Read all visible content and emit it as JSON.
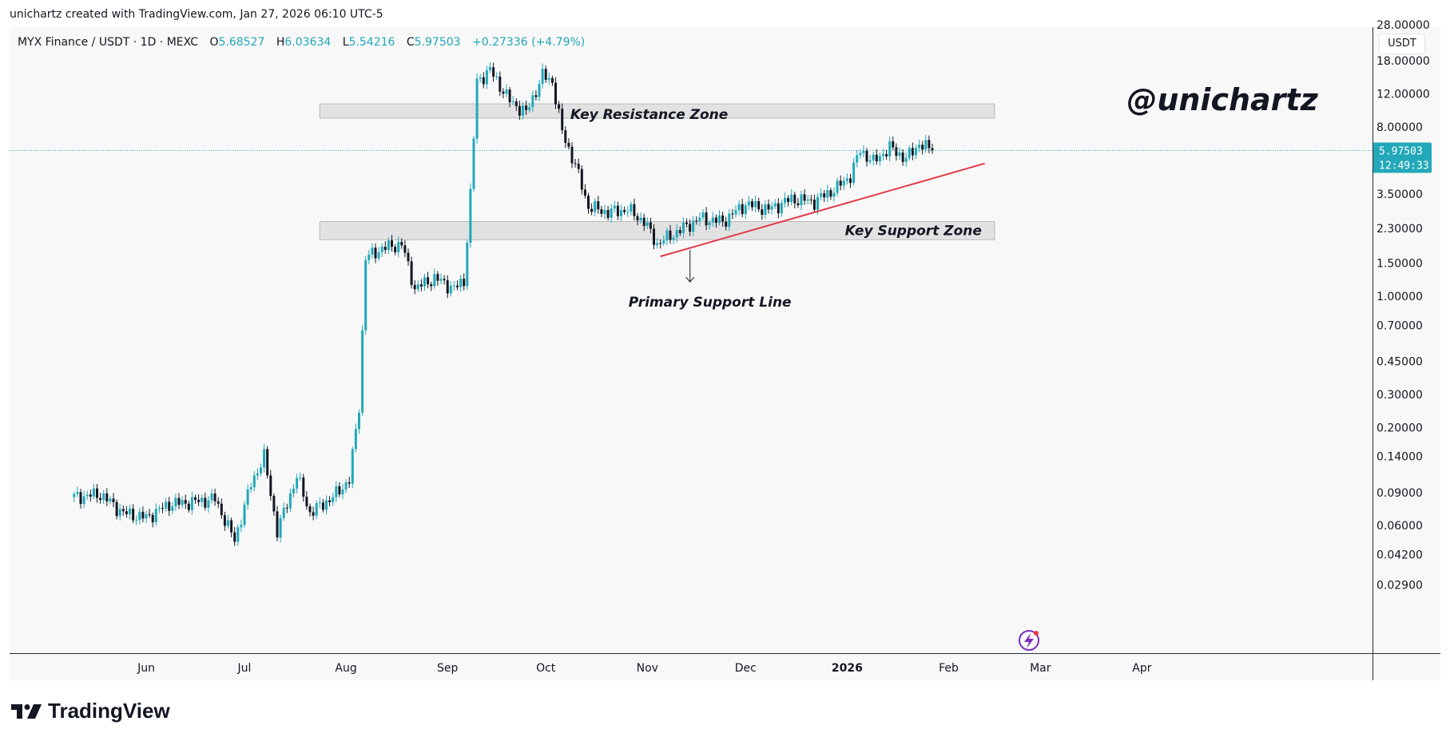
{
  "credit": "unichartz created with TradingView.com, Jan 27, 2026 06:10 UTC-5",
  "header": {
    "symbol": "MYX Finance / USDT · 1D · MEXC",
    "open_label": "O",
    "open": "5.68527",
    "high_label": "H",
    "high": "6.03634",
    "low_label": "L",
    "low": "5.54216",
    "close_label": "C",
    "close": "5.97503",
    "change": "+0.27336 (+4.79%)"
  },
  "currency": "USDT",
  "brand": "TradingView",
  "colors": {
    "up": "#22a8b9",
    "down": "#131722",
    "trendline": "#e23b4a",
    "zone": "#dcdcdc",
    "price_line": "#22a8b9"
  },
  "chart_data": {
    "type": "candlestick",
    "scale": "log",
    "title": "MYX Finance / USDT · 1D · MEXC",
    "watermark": "@unichartz",
    "y_ticks": [
      "28.00000",
      "18.00000",
      "12.00000",
      "8.00000",
      "3.50000",
      "2.30000",
      "1.50000",
      "1.00000",
      "0.70000",
      "0.45000",
      "0.30000",
      "0.20000",
      "0.14000",
      "0.09000",
      "0.06000",
      "0.04200",
      "0.02900"
    ],
    "x_labels": [
      "Jun",
      "Jul",
      "Aug",
      "Sep",
      "Oct",
      "Nov",
      "Dec",
      "2026",
      "Feb",
      "Mar",
      "Apr"
    ],
    "last_price": "5.97503",
    "countdown": "12:49:33",
    "zones": [
      {
        "label": "Key Resistance Zone",
        "low": 8.9,
        "high": 10.6,
        "start": "2025-07-24",
        "end": "2026-02-15"
      },
      {
        "label": "Key Support Zone",
        "low": 2.0,
        "high": 2.5,
        "start": "2025-07-24",
        "end": "2026-02-15"
      }
    ],
    "trendline": {
      "label": "Primary Support Line",
      "from": {
        "date": "2025-11-05",
        "price": 1.63
      },
      "to": {
        "date": "2026-02-12",
        "price": 5.1
      }
    },
    "close_series": [
      {
        "date": "2025-05-10",
        "price": 0.085
      },
      {
        "date": "2025-05-18",
        "price": 0.088
      },
      {
        "date": "2025-05-25",
        "price": 0.07
      },
      {
        "date": "2025-06-01",
        "price": 0.066
      },
      {
        "date": "2025-06-08",
        "price": 0.078
      },
      {
        "date": "2025-06-15",
        "price": 0.08
      },
      {
        "date": "2025-06-22",
        "price": 0.083
      },
      {
        "date": "2025-06-28",
        "price": 0.05
      },
      {
        "date": "2025-07-03",
        "price": 0.1
      },
      {
        "date": "2025-07-07",
        "price": 0.14
      },
      {
        "date": "2025-07-11",
        "price": 0.056
      },
      {
        "date": "2025-07-17",
        "price": 0.11
      },
      {
        "date": "2025-07-21",
        "price": 0.07
      },
      {
        "date": "2025-07-28",
        "price": 0.085
      },
      {
        "date": "2025-08-02",
        "price": 0.105
      },
      {
        "date": "2025-08-05",
        "price": 0.26
      },
      {
        "date": "2025-08-07",
        "price": 1.6
      },
      {
        "date": "2025-08-12",
        "price": 1.8
      },
      {
        "date": "2025-08-18",
        "price": 1.9
      },
      {
        "date": "2025-08-22",
        "price": 1.1
      },
      {
        "date": "2025-08-28",
        "price": 1.25
      },
      {
        "date": "2025-09-03",
        "price": 1.1
      },
      {
        "date": "2025-09-06",
        "price": 1.2
      },
      {
        "date": "2025-09-08",
        "price": 3.5
      },
      {
        "date": "2025-09-10",
        "price": 14
      },
      {
        "date": "2025-09-14",
        "price": 16
      },
      {
        "date": "2025-09-20",
        "price": 11
      },
      {
        "date": "2025-09-25",
        "price": 9.5
      },
      {
        "date": "2025-09-30",
        "price": 15
      },
      {
        "date": "2025-10-03",
        "price": 14
      },
      {
        "date": "2025-10-06",
        "price": 7.5
      },
      {
        "date": "2025-10-10",
        "price": 5
      },
      {
        "date": "2025-10-14",
        "price": 3
      },
      {
        "date": "2025-10-20",
        "price": 2.8
      },
      {
        "date": "2025-10-26",
        "price": 2.9
      },
      {
        "date": "2025-10-31",
        "price": 2.5
      },
      {
        "date": "2025-11-04",
        "price": 1.9
      },
      {
        "date": "2025-11-10",
        "price": 2.2
      },
      {
        "date": "2025-11-17",
        "price": 2.6
      },
      {
        "date": "2025-11-24",
        "price": 2.5
      },
      {
        "date": "2025-12-01",
        "price": 3.1
      },
      {
        "date": "2025-12-08",
        "price": 2.9
      },
      {
        "date": "2025-12-15",
        "price": 3.3
      },
      {
        "date": "2025-12-22",
        "price": 3.2
      },
      {
        "date": "2025-12-29",
        "price": 3.8
      },
      {
        "date": "2026-01-02",
        "price": 4.4
      },
      {
        "date": "2026-01-05",
        "price": 6.0
      },
      {
        "date": "2026-01-09",
        "price": 5.2
      },
      {
        "date": "2026-01-14",
        "price": 6.2
      },
      {
        "date": "2026-01-19",
        "price": 5.4
      },
      {
        "date": "2026-01-23",
        "price": 6.5
      },
      {
        "date": "2026-01-27",
        "price": 5.97503
      }
    ]
  }
}
